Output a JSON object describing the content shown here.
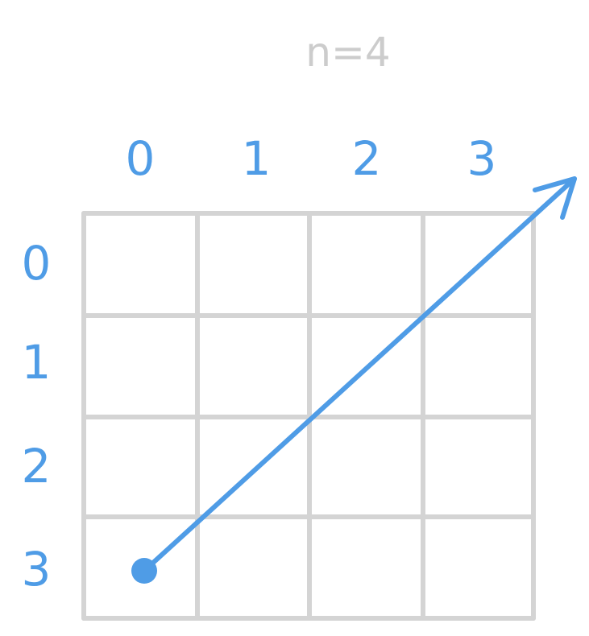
{
  "title": "n=4",
  "n": 4,
  "column_labels": [
    "0",
    "1",
    "2",
    "3"
  ],
  "row_labels": [
    "0",
    "1",
    "2",
    "3"
  ],
  "arrow": {
    "start_cell": {
      "row": 3,
      "col": 0
    },
    "direction": "up-right diagonal"
  },
  "colors": {
    "grid": "#d4d4d4",
    "title": "#cccccc",
    "accent": "#4f9ce6"
  }
}
